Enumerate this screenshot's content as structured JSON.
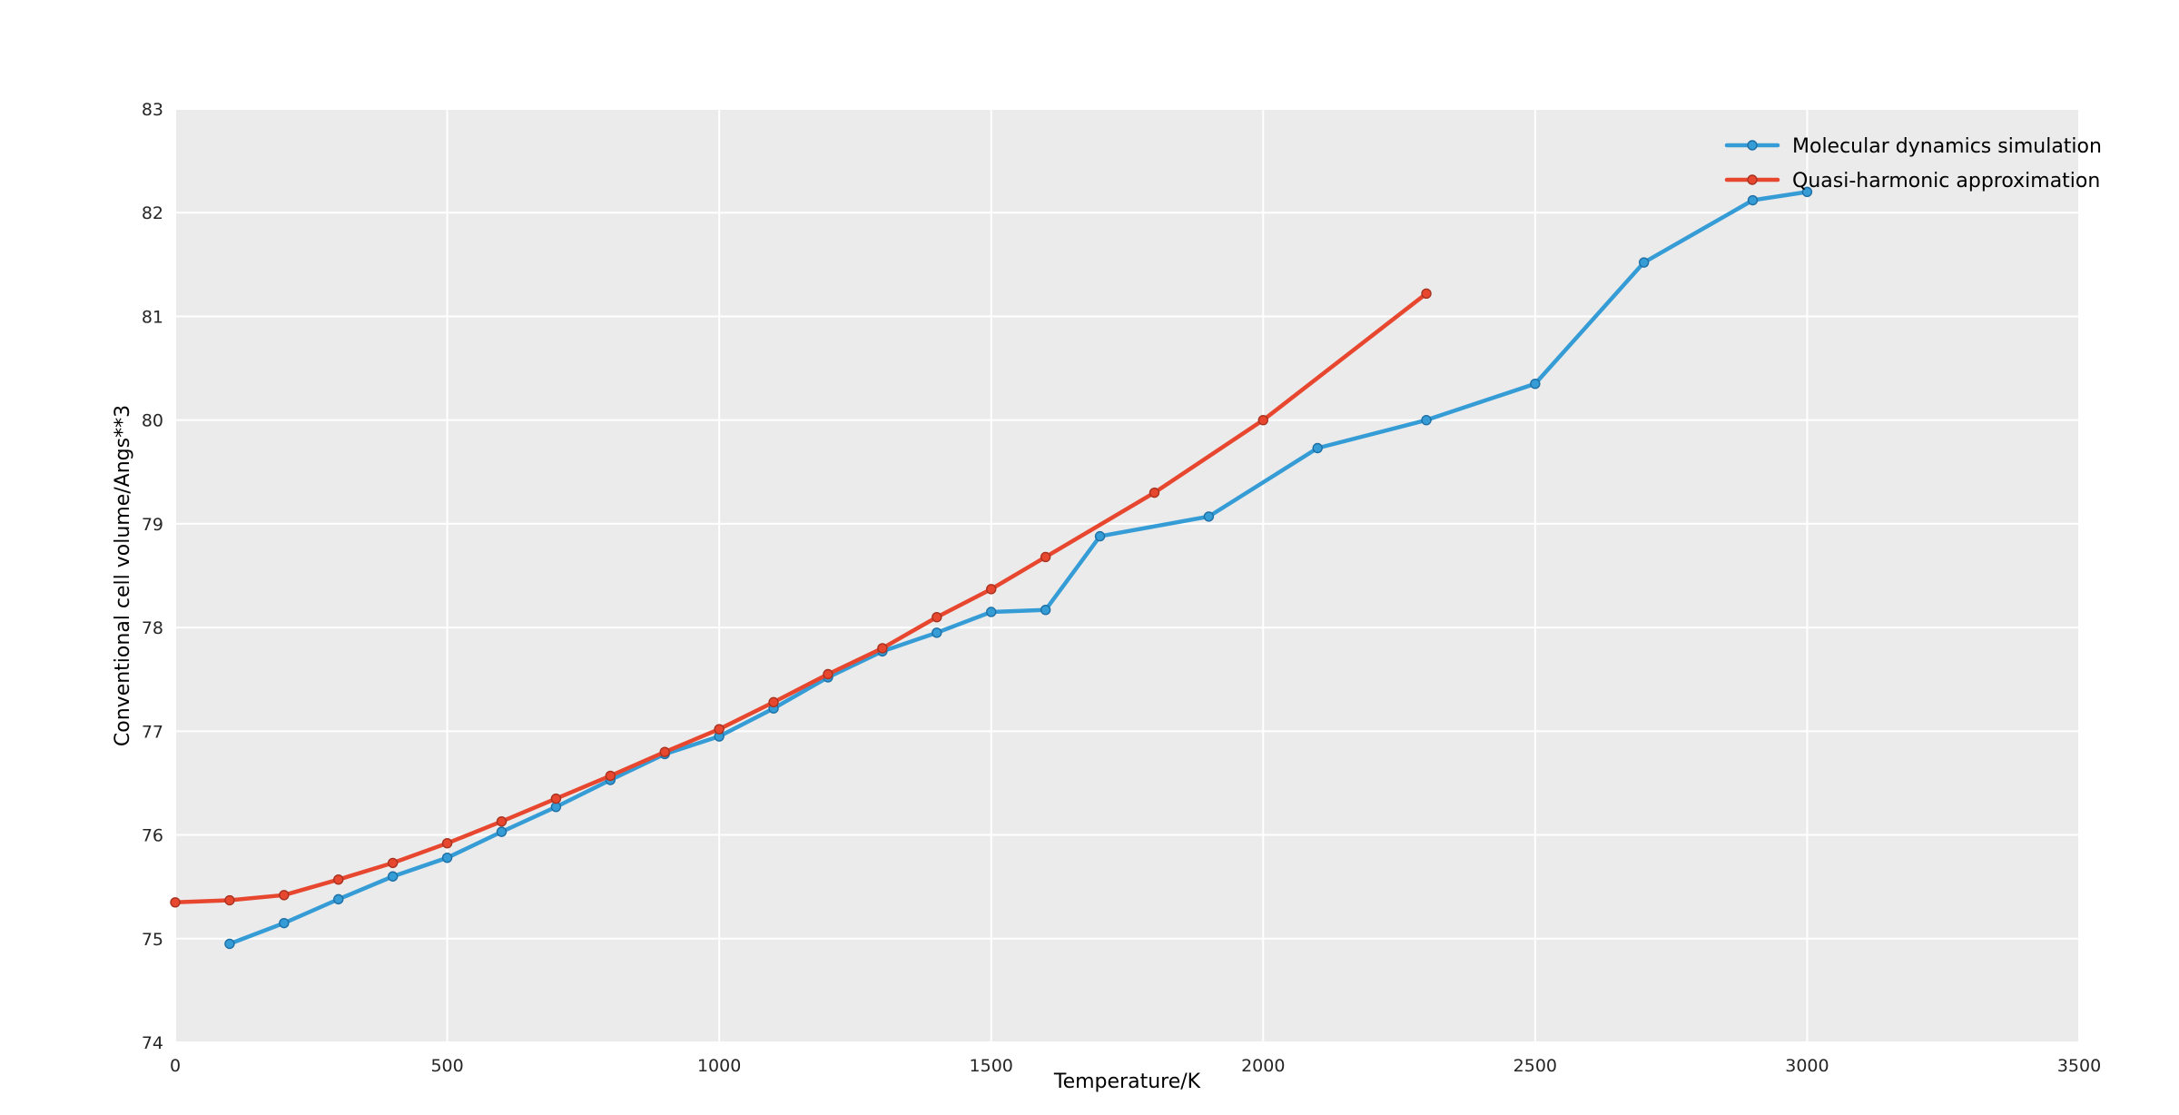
{
  "chart_data": {
    "type": "line",
    "title": "",
    "xlabel": "Temperature/K",
    "ylabel": "Conventional cell volume/Angs**3",
    "xlim": [
      0,
      3500
    ],
    "ylim": [
      74,
      83
    ],
    "x_ticks": [
      0,
      500,
      1000,
      1500,
      2000,
      2500,
      3000,
      3500
    ],
    "y_ticks": [
      74,
      75,
      76,
      77,
      78,
      79,
      80,
      81,
      82,
      83
    ],
    "grid": true,
    "legend_position": "upper right",
    "series": [
      {
        "name": "Molecular dynamics simulation",
        "color": "#369cd6",
        "marker_edge": "#1d6fa5",
        "x": [
          100,
          200,
          300,
          400,
          500,
          600,
          700,
          800,
          900,
          1000,
          1100,
          1200,
          1300,
          1400,
          1500,
          1600,
          1700,
          1900,
          2100,
          2300,
          2500,
          2700,
          2900,
          3000
        ],
        "y": [
          74.95,
          75.15,
          75.38,
          75.6,
          75.78,
          76.03,
          76.27,
          76.53,
          76.78,
          76.95,
          77.22,
          77.52,
          77.77,
          77.95,
          78.15,
          78.17,
          78.88,
          79.07,
          79.73,
          80.0,
          80.35,
          81.52,
          82.12,
          82.2
        ]
      },
      {
        "name": "Quasi-harmonic approximation",
        "color": "#e8472f",
        "marker_edge": "#a83220",
        "x": [
          0,
          100,
          200,
          300,
          400,
          500,
          600,
          700,
          800,
          900,
          1000,
          1100,
          1200,
          1300,
          1400,
          1500,
          1600,
          1800,
          2000,
          2300
        ],
        "y": [
          75.35,
          75.37,
          75.42,
          75.57,
          75.73,
          75.92,
          76.13,
          76.35,
          76.57,
          76.8,
          77.02,
          77.28,
          77.55,
          77.8,
          78.1,
          78.37,
          78.68,
          79.3,
          80.0,
          81.22
        ]
      }
    ]
  },
  "style": {
    "plot_bg": "#ebebeb",
    "grid_color": "#ffffff",
    "tick_color": "#262626",
    "label_color": "#000000",
    "legend_text_color": "#000000"
  }
}
